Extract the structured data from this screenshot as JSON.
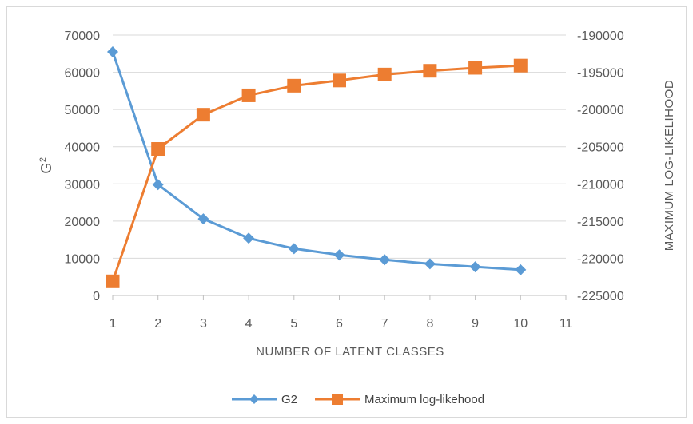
{
  "chart_data": {
    "type": "line",
    "x": [
      1,
      2,
      3,
      4,
      5,
      6,
      7,
      8,
      9,
      10
    ],
    "xlabel": "NUMBER OF LATENT CLASSES",
    "xlim": [
      1,
      11
    ],
    "xticks": [
      "1",
      "2",
      "3",
      "4",
      "5",
      "6",
      "7",
      "8",
      "9",
      "10",
      "11"
    ],
    "ylabel_left_base": "G",
    "ylabel_left_sup": "2",
    "ylim_left": [
      0,
      70000
    ],
    "yticks_left": [
      "0",
      "10000",
      "20000",
      "30000",
      "40000",
      "50000",
      "60000",
      "70000"
    ],
    "ylabel_right": "MAXIMUM  LOG-LIKELIHOOD",
    "ylim_right": [
      -225000,
      -190000
    ],
    "yticks_right": [
      "-225000",
      "-220000",
      "-215000",
      "-210000",
      "-205000",
      "-200000",
      "-195000",
      "-190000"
    ],
    "grid": "horizontal",
    "legend_position": "bottom",
    "series": [
      {
        "name": "G2",
        "axis": "left",
        "marker": "diamond",
        "color": "#5b9bd5",
        "values": [
          65500,
          29800,
          20600,
          15400,
          12600,
          10900,
          9600,
          8500,
          7700,
          6900
        ]
      },
      {
        "name": "Maximum log-likehood",
        "axis": "right",
        "marker": "square",
        "color": "#ed7d31",
        "values": [
          -223100,
          -205300,
          -200700,
          -198100,
          -196800,
          -196100,
          -195300,
          -194800,
          -194400,
          -194100
        ]
      }
    ]
  }
}
